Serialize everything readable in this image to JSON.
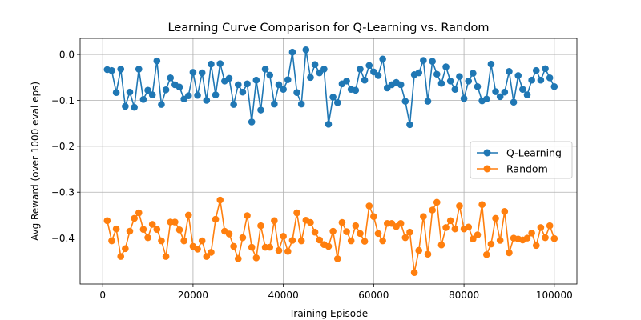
{
  "chart_data": {
    "type": "line",
    "title": "Learning Curve Comparison for Q-Learning vs. Random",
    "xlabel": "Training Episode",
    "ylabel": "Avg Reward (over 1000 eval eps)",
    "xlim": [
      -5000,
      105000
    ],
    "ylim": [
      -0.5,
      0.035
    ],
    "xticks": [
      {
        "value": 0,
        "label": "0"
      },
      {
        "value": 20000,
        "label": "20000"
      },
      {
        "value": 40000,
        "label": "40000"
      },
      {
        "value": 60000,
        "label": "60000"
      },
      {
        "value": 80000,
        "label": "80000"
      },
      {
        "value": 100000,
        "label": "100000"
      }
    ],
    "yticks": [
      {
        "value": 0.0,
        "label": "0.0"
      },
      {
        "value": -0.1,
        "label": "−0.1"
      },
      {
        "value": -0.2,
        "label": "−0.2"
      },
      {
        "value": -0.3,
        "label": "−0.3"
      },
      {
        "value": -0.4,
        "label": "−0.4"
      }
    ],
    "grid": true,
    "legend_position": "center-right",
    "x": [
      1000,
      2000,
      3000,
      4000,
      5000,
      6000,
      7000,
      8000,
      9000,
      10000,
      11000,
      12000,
      13000,
      14000,
      15000,
      16000,
      17000,
      18000,
      19000,
      20000,
      21000,
      22000,
      23000,
      24000,
      25000,
      26000,
      27000,
      28000,
      29000,
      30000,
      31000,
      32000,
      33000,
      34000,
      35000,
      36000,
      37000,
      38000,
      39000,
      40000,
      41000,
      42000,
      43000,
      44000,
      45000,
      46000,
      47000,
      48000,
      49000,
      50000,
      51000,
      52000,
      53000,
      54000,
      55000,
      56000,
      57000,
      58000,
      59000,
      60000,
      61000,
      62000,
      63000,
      64000,
      65000,
      66000,
      67000,
      68000,
      69000,
      70000,
      71000,
      72000,
      73000,
      74000,
      75000,
      76000,
      77000,
      78000,
      79000,
      80000,
      81000,
      82000,
      83000,
      84000,
      85000,
      86000,
      87000,
      88000,
      89000,
      90000,
      91000,
      92000,
      93000,
      94000,
      95000,
      96000,
      97000,
      98000,
      99000,
      100000
    ],
    "series": [
      {
        "name": "Q-Learning",
        "color": "#1f77b4",
        "values": [
          -0.033,
          -0.035,
          -0.083,
          -0.032,
          -0.113,
          -0.082,
          -0.115,
          -0.032,
          -0.098,
          -0.078,
          -0.088,
          -0.014,
          -0.109,
          -0.077,
          -0.051,
          -0.066,
          -0.071,
          -0.097,
          -0.09,
          -0.039,
          -0.089,
          -0.04,
          -0.1,
          -0.021,
          -0.088,
          -0.02,
          -0.058,
          -0.052,
          -0.109,
          -0.066,
          -0.082,
          -0.064,
          -0.147,
          -0.056,
          -0.121,
          -0.032,
          -0.045,
          -0.108,
          -0.066,
          -0.076,
          -0.055,
          0.005,
          -0.083,
          -0.108,
          0.01,
          -0.05,
          -0.022,
          -0.04,
          -0.032,
          -0.152,
          -0.093,
          -0.105,
          -0.064,
          -0.058,
          -0.076,
          -0.078,
          -0.032,
          -0.056,
          -0.024,
          -0.038,
          -0.046,
          -0.01,
          -0.073,
          -0.066,
          -0.061,
          -0.066,
          -0.102,
          -0.153,
          -0.044,
          -0.04,
          -0.013,
          -0.102,
          -0.015,
          -0.043,
          -0.063,
          -0.027,
          -0.058,
          -0.076,
          -0.048,
          -0.096,
          -0.058,
          -0.041,
          -0.07,
          -0.101,
          -0.097,
          -0.021,
          -0.081,
          -0.092,
          -0.082,
          -0.037,
          -0.104,
          -0.046,
          -0.076,
          -0.088,
          -0.056,
          -0.035,
          -0.056,
          -0.031,
          -0.051,
          -0.07
        ]
      },
      {
        "name": "Random",
        "color": "#ff7f0e",
        "values": [
          -0.362,
          -0.406,
          -0.38,
          -0.44,
          -0.423,
          -0.385,
          -0.357,
          -0.345,
          -0.381,
          -0.399,
          -0.37,
          -0.381,
          -0.406,
          -0.44,
          -0.365,
          -0.365,
          -0.382,
          -0.406,
          -0.35,
          -0.418,
          -0.424,
          -0.406,
          -0.44,
          -0.431,
          -0.359,
          -0.317,
          -0.385,
          -0.391,
          -0.418,
          -0.445,
          -0.399,
          -0.351,
          -0.42,
          -0.443,
          -0.373,
          -0.42,
          -0.42,
          -0.362,
          -0.427,
          -0.396,
          -0.429,
          -0.405,
          -0.345,
          -0.406,
          -0.361,
          -0.366,
          -0.387,
          -0.404,
          -0.414,
          -0.418,
          -0.385,
          -0.445,
          -0.366,
          -0.386,
          -0.406,
          -0.373,
          -0.39,
          -0.407,
          -0.33,
          -0.353,
          -0.39,
          -0.406,
          -0.368,
          -0.368,
          -0.375,
          -0.368,
          -0.399,
          -0.387,
          -0.475,
          -0.427,
          -0.353,
          -0.435,
          -0.339,
          -0.322,
          -0.415,
          -0.377,
          -0.362,
          -0.38,
          -0.33,
          -0.38,
          -0.376,
          -0.402,
          -0.393,
          -0.327,
          -0.436,
          -0.413,
          -0.357,
          -0.405,
          -0.342,
          -0.432,
          -0.4,
          -0.402,
          -0.404,
          -0.4,
          -0.389,
          -0.416,
          -0.377,
          -0.399,
          -0.373,
          -0.401
        ]
      }
    ]
  }
}
